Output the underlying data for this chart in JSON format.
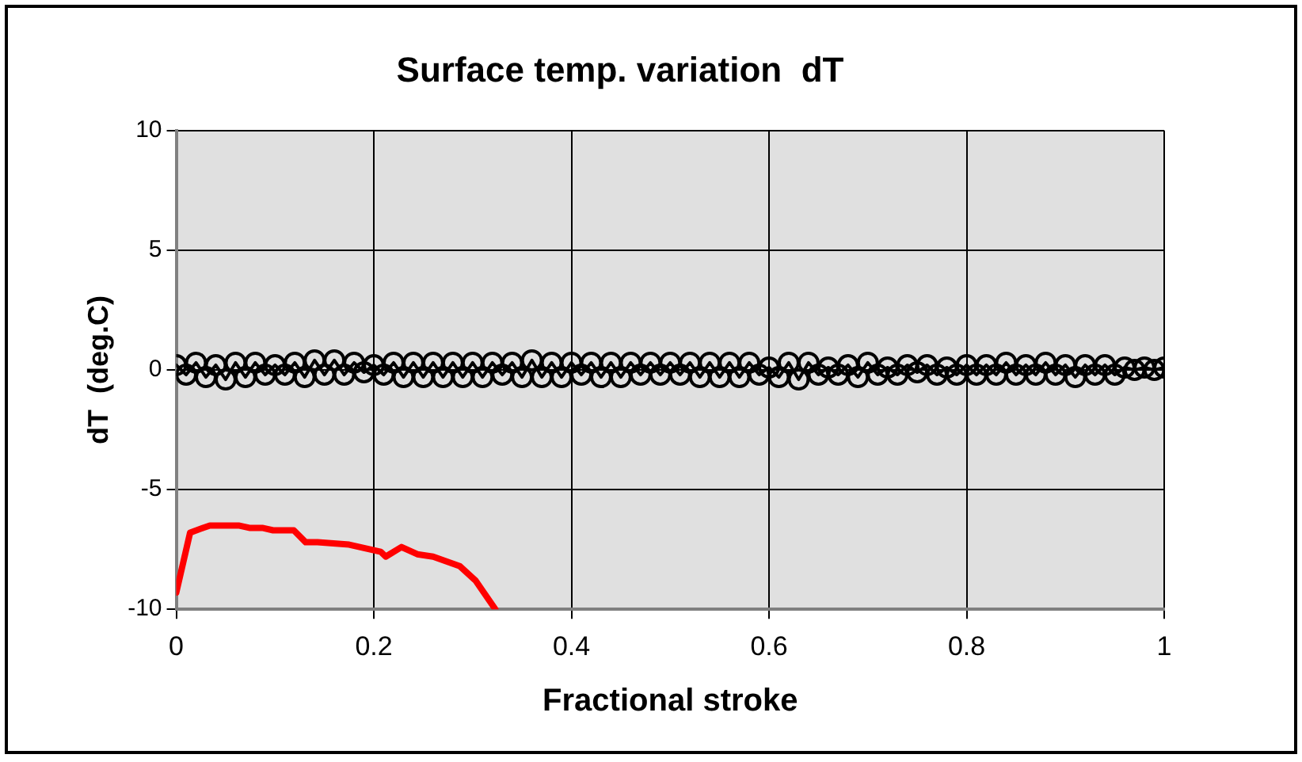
{
  "chart_data": {
    "type": "line",
    "title": "Surface temp. variation  dT",
    "xlabel": "Fractional stroke",
    "ylabel": "dT  (deg.C)",
    "xlim": [
      0,
      1
    ],
    "xticks": [
      0,
      0.2,
      0.4,
      0.6,
      0.8,
      1
    ],
    "ylim": [
      -10,
      10
    ],
    "yticks": [
      -10,
      -5,
      0,
      5,
      10
    ],
    "grid": true,
    "legend": false,
    "line_style": "solid",
    "series": [
      {
        "color": "#000000",
        "marker": "circle",
        "x": [
          0,
          0.01,
          0.02,
          0.03,
          0.04,
          0.05,
          0.06,
          0.07,
          0.08,
          0.09,
          0.1,
          0.11,
          0.12,
          0.13,
          0.14,
          0.15,
          0.16,
          0.17,
          0.18,
          0.19,
          0.2,
          0.21,
          0.22,
          0.23,
          0.24,
          0.25,
          0.26,
          0.27,
          0.28,
          0.29,
          0.3,
          0.31,
          0.32,
          0.33,
          0.34,
          0.35,
          0.36,
          0.37,
          0.38,
          0.39,
          0.4,
          0.41,
          0.42,
          0.43,
          0.44,
          0.45,
          0.46,
          0.47,
          0.48,
          0.49,
          0.5,
          0.51,
          0.52,
          0.53,
          0.54,
          0.55,
          0.56,
          0.57,
          0.58,
          0.59,
          0.6,
          0.61,
          0.62,
          0.63,
          0.64,
          0.65,
          0.66,
          0.67,
          0.68,
          0.69,
          0.7,
          0.71,
          0.72,
          0.73,
          0.74,
          0.75,
          0.76,
          0.77,
          0.78,
          0.79,
          0.8,
          0.81,
          0.82,
          0.83,
          0.84,
          0.85,
          0.86,
          0.87,
          0.88,
          0.89,
          0.9,
          0.91,
          0.92,
          0.93,
          0.94,
          0.95,
          0.96,
          0.97,
          0.98,
          0.99,
          1
        ],
        "values": [
          0.2,
          -0.2,
          0.3,
          -0.3,
          0.2,
          -0.4,
          0.3,
          -0.3,
          0.3,
          -0.2,
          0.2,
          -0.2,
          0.3,
          -0.3,
          0.4,
          -0.2,
          0.4,
          -0.2,
          0.3,
          -0.1,
          0.2,
          -0.2,
          0.3,
          -0.3,
          0.3,
          -0.3,
          0.3,
          -0.3,
          0.3,
          -0.3,
          0.3,
          -0.3,
          0.3,
          -0.2,
          0.3,
          -0.3,
          0.4,
          -0.3,
          0.3,
          -0.3,
          0.3,
          -0.2,
          0.3,
          -0.3,
          0.3,
          -0.3,
          0.3,
          -0.2,
          0.3,
          -0.2,
          0.3,
          -0.2,
          0.3,
          -0.3,
          0.3,
          -0.3,
          0.3,
          -0.3,
          0.3,
          -0.2,
          0.1,
          -0.3,
          0.3,
          -0.4,
          0.3,
          -0.2,
          0.1,
          -0.2,
          0.2,
          -0.3,
          0.3,
          -0.2,
          0.1,
          -0.2,
          0.2,
          -0.1,
          0.2,
          -0.2,
          0.1,
          -0.2,
          0.2,
          -0.2,
          0.2,
          -0.2,
          0.3,
          -0.2,
          0.2,
          -0.2,
          0.3,
          -0.2,
          0.2,
          -0.3,
          0.2,
          -0.2,
          0.2,
          -0.2,
          0.1,
          0.0,
          0.1,
          0.0,
          0.1
        ]
      },
      {
        "color": "#ff0000",
        "marker": "none",
        "x": [
          0,
          0.014,
          0.027,
          0.034,
          0.063,
          0.074,
          0.087,
          0.098,
          0.119,
          0.131,
          0.143,
          0.175,
          0.207,
          0.212,
          0.228,
          0.244,
          0.26,
          0.287,
          0.303,
          0.323
        ],
        "values": [
          -9.3,
          -6.8,
          -6.6,
          -6.5,
          -6.5,
          -6.6,
          -6.6,
          -6.7,
          -6.7,
          -7.2,
          -7.2,
          -7.3,
          -7.6,
          -7.8,
          -7.4,
          -7.7,
          -7.8,
          -8.2,
          -8.8,
          -10.0
        ]
      }
    ]
  }
}
